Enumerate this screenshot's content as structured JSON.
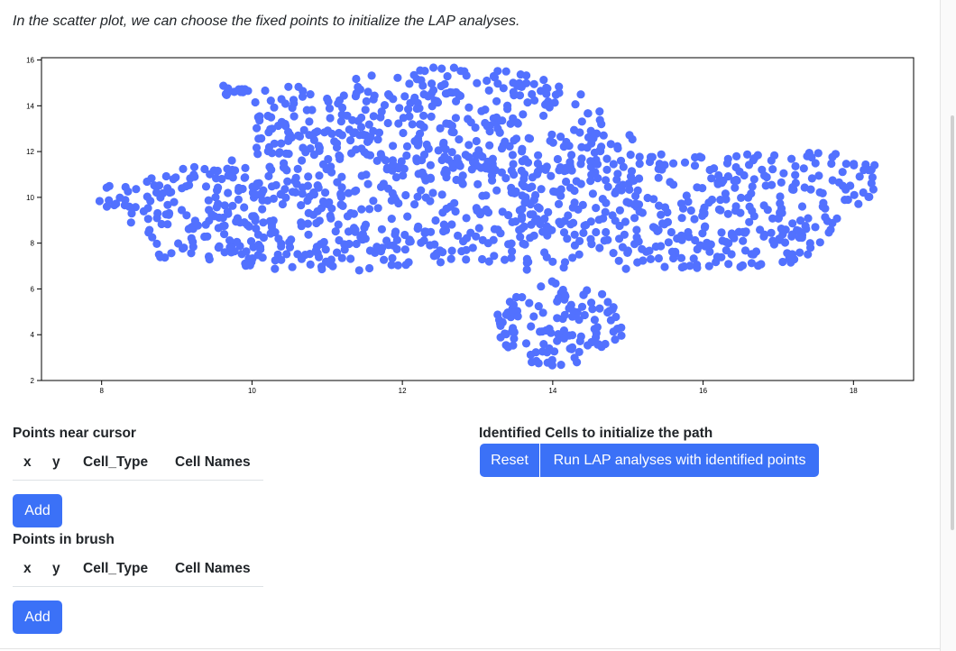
{
  "intro_text": "In the scatter plot, we can choose the fixed points to initialize the LAP analyses.",
  "chart_data": {
    "type": "scatter",
    "title": "",
    "xlabel": "",
    "ylabel": "",
    "xlim": [
      7.2,
      18.8
    ],
    "ylim": [
      2,
      16.1
    ],
    "x_ticks": [
      8,
      10,
      12,
      14,
      16,
      18
    ],
    "y_ticks": [
      2,
      4,
      6,
      8,
      10,
      12,
      14,
      16
    ],
    "grid": false,
    "point_color": "#5271ff",
    "point_count": 1400,
    "clusters": [
      {
        "name_hint": "main-band",
        "x_range": [
          7.9,
          18.3
        ],
        "y_range": [
          6.7,
          11.9
        ]
      },
      {
        "name_hint": "upper-dome",
        "x_range": [
          9.6,
          14.8
        ],
        "y_range": [
          11.8,
          15.7
        ]
      },
      {
        "name_hint": "lower-lobe",
        "x_range": [
          13.3,
          14.9
        ],
        "y_range": [
          2.7,
          6.4
        ]
      }
    ]
  },
  "near_cursor": {
    "title": "Points near cursor",
    "columns": [
      "x",
      "y",
      "Cell_Type",
      "Cell Names"
    ],
    "add_label": "Add"
  },
  "brush": {
    "title": "Points in brush",
    "columns": [
      "x",
      "y",
      "Cell_Type",
      "Cell Names"
    ],
    "add_label": "Add"
  },
  "identified": {
    "title": "Identified Cells to initialize the path",
    "reset_label": "Reset",
    "run_label": "Run LAP analyses with identified points"
  },
  "colors": {
    "accent": "#3b71f7",
    "points": "#5271ff",
    "text": "#212529"
  }
}
